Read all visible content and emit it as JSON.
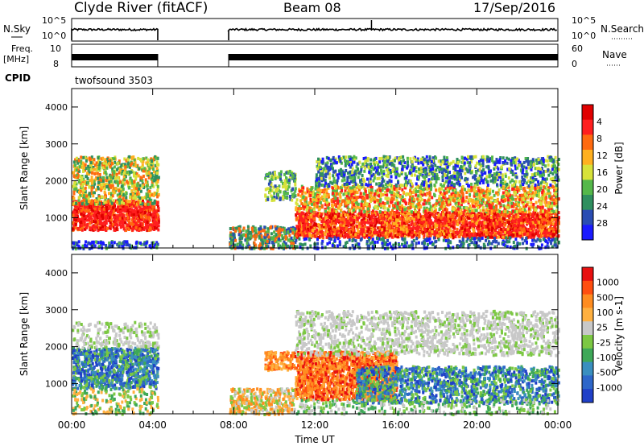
{
  "header": {
    "station": "Clyde River (fitACF)",
    "beam": "Beam 08",
    "date": "17/Sep/2016"
  },
  "nsky_panel": {
    "label_left": "N.Sky",
    "tick_left": [
      "10^5",
      "10^0"
    ],
    "label_right": "N.Search",
    "tick_right": [
      "10^5",
      "10^0"
    ]
  },
  "freq_panel": {
    "label_left_1": "Freq.",
    "label_left_2": "[MHz]",
    "tick_left": [
      "10",
      "8"
    ],
    "label_right": "Nave",
    "tick_right": [
      "60",
      "0"
    ]
  },
  "cpid": {
    "label": "CPID",
    "value": "twofsound 3503"
  },
  "chart_data": [
    {
      "type": "heatmap",
      "title": "",
      "ylabel": "Slant Range [km]",
      "yticks": [
        1000,
        2000,
        3000,
        4000
      ],
      "ylim": [
        180,
        4500
      ],
      "xlim": [
        0,
        24
      ],
      "colorbar": {
        "label": "Power [dB]",
        "ticks": [
          "4",
          "8",
          "12",
          "16",
          "20",
          "24",
          "28"
        ],
        "colors": [
          "#1a1aff",
          "#2a4db3",
          "#2f8f5f",
          "#55b84a",
          "#d7e23a",
          "#ffb020",
          "#ff6a10",
          "#ff1f1f",
          "#e00000"
        ]
      },
      "data_gap_hours": [
        4.25,
        7.75
      ]
    },
    {
      "type": "heatmap",
      "title": "",
      "ylabel": "Slant Range [km]",
      "yticks": [
        1000,
        2000,
        3000,
        4000
      ],
      "ylim": [
        180,
        4500
      ],
      "xlim": [
        0,
        24
      ],
      "xticks": [
        "00:00",
        "04:00",
        "08:00",
        "12:00",
        "16:00",
        "20:00",
        "00:00"
      ],
      "xlabel": "Time UT",
      "colorbar": {
        "label": "Velocity [m s-1]",
        "ticks": [
          "1000",
          "500",
          "100",
          "25",
          "-25",
          "-100",
          "-500",
          "-1000"
        ],
        "colors": [
          "#2040c8",
          "#2e67c9",
          "#3a8fbf",
          "#3ea858",
          "#7cc843",
          "#c8c8c8",
          "#ffb040",
          "#ff8c20",
          "#ff4e10",
          "#e81010"
        ]
      },
      "data_gap_hours": [
        4.25,
        7.75
      ]
    }
  ]
}
